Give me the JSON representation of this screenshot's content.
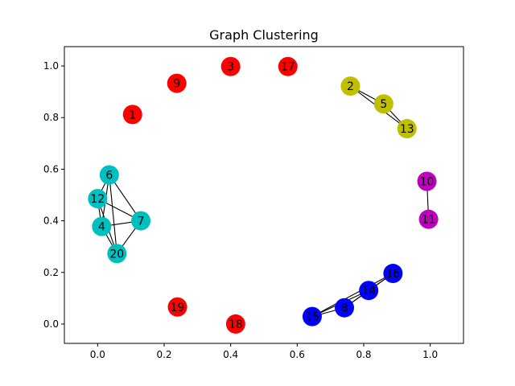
{
  "chart_data": {
    "type": "scatter",
    "title": "Graph Clustering",
    "xlabel": "",
    "ylabel": "",
    "xlim": [
      -0.1,
      1.1
    ],
    "ylim": [
      -0.075,
      1.075
    ],
    "grid": false,
    "x_ticks": [
      0.0,
      0.2,
      0.4,
      0.6,
      0.8,
      1.0
    ],
    "y_ticks": [
      0.0,
      0.2,
      0.4,
      0.6,
      0.8,
      1.0
    ],
    "x_tick_labels": [
      "0.0",
      "0.2",
      "0.4",
      "0.6",
      "0.8",
      "1.0"
    ],
    "y_tick_labels": [
      "0.0",
      "0.2",
      "0.4",
      "0.6",
      "0.8",
      "1.0"
    ],
    "nodes": [
      {
        "id": "1",
        "x": 0.105,
        "y": 0.812,
        "color": "#ff0000"
      },
      {
        "id": "2",
        "x": 0.76,
        "y": 0.922,
        "color": "#bfbf00"
      },
      {
        "id": "3",
        "x": 0.4,
        "y": 0.998,
        "color": "#ff0000"
      },
      {
        "id": "4",
        "x": 0.012,
        "y": 0.378,
        "color": "#00bfbf"
      },
      {
        "id": "5",
        "x": 0.86,
        "y": 0.853,
        "color": "#bfbf00"
      },
      {
        "id": "6",
        "x": 0.035,
        "y": 0.578,
        "color": "#00bfbf"
      },
      {
        "id": "7",
        "x": 0.13,
        "y": 0.4,
        "color": "#00bfbf"
      },
      {
        "id": "8",
        "x": 0.742,
        "y": 0.063,
        "color": "#0000ff"
      },
      {
        "id": "9",
        "x": 0.238,
        "y": 0.933,
        "color": "#ff0000"
      },
      {
        "id": "10",
        "x": 0.99,
        "y": 0.553,
        "color": "#bf00bf"
      },
      {
        "id": "11",
        "x": 0.995,
        "y": 0.406,
        "color": "#bf00bf"
      },
      {
        "id": "12",
        "x": 0.0,
        "y": 0.486,
        "color": "#00bfbf"
      },
      {
        "id": "13",
        "x": 0.93,
        "y": 0.757,
        "color": "#bfbf00"
      },
      {
        "id": "14",
        "x": 0.815,
        "y": 0.13,
        "color": "#0000ff"
      },
      {
        "id": "15",
        "x": 0.645,
        "y": 0.029,
        "color": "#0000ff"
      },
      {
        "id": "16",
        "x": 0.888,
        "y": 0.196,
        "color": "#0000ff"
      },
      {
        "id": "17",
        "x": 0.572,
        "y": 0.998,
        "color": "#ff0000"
      },
      {
        "id": "18",
        "x": 0.415,
        "y": 0.0,
        "color": "#ff0000"
      },
      {
        "id": "19",
        "x": 0.24,
        "y": 0.066,
        "color": "#ff0000"
      },
      {
        "id": "20",
        "x": 0.058,
        "y": 0.273,
        "color": "#00bfbf"
      }
    ],
    "edges": [
      [
        "2",
        "5"
      ],
      [
        "2",
        "13"
      ],
      [
        "5",
        "13"
      ],
      [
        "10",
        "11"
      ],
      [
        "6",
        "12"
      ],
      [
        "6",
        "4"
      ],
      [
        "6",
        "7"
      ],
      [
        "6",
        "20"
      ],
      [
        "12",
        "4"
      ],
      [
        "12",
        "7"
      ],
      [
        "12",
        "20"
      ],
      [
        "4",
        "7"
      ],
      [
        "4",
        "20"
      ],
      [
        "7",
        "20"
      ],
      [
        "15",
        "8"
      ],
      [
        "15",
        "14"
      ],
      [
        "15",
        "16"
      ],
      [
        "8",
        "14"
      ],
      [
        "8",
        "16"
      ],
      [
        "14",
        "16"
      ]
    ]
  }
}
